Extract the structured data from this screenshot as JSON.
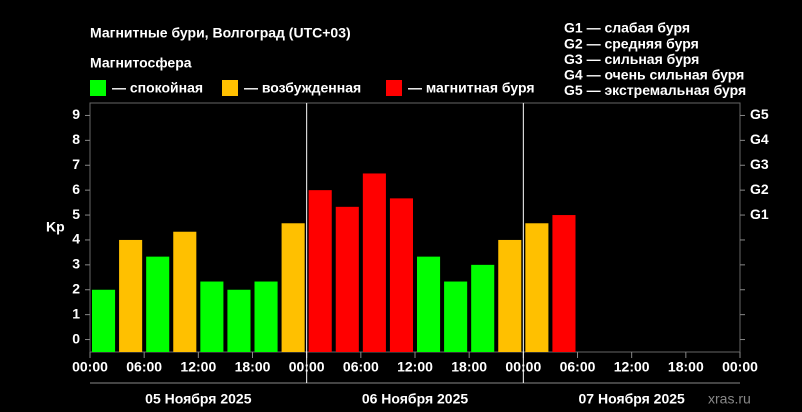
{
  "chart_data": {
    "type": "bar",
    "title": "Магнитные бури, Волгоград (UTC+03)",
    "legend_title": "Магнитосфера",
    "legend": [
      {
        "label": "— спокойная",
        "color": "#00ff00"
      },
      {
        "label": "— возбужденная",
        "color": "#ffc000"
      },
      {
        "label": "— магнитная буря",
        "color": "#ff0000"
      }
    ],
    "storm_levels": [
      "G1 — слабая буря",
      "G2 — средняя буря",
      "G3 — сильная буря",
      "G4 — очень сильная буря",
      "G5 — экстремальная буря"
    ],
    "ylabel": "Kp",
    "x": [
      0,
      3,
      6,
      9,
      12,
      15,
      18,
      21,
      24,
      27,
      30,
      33,
      36,
      39,
      42,
      45,
      48,
      51
    ],
    "values": [
      2,
      4,
      3.33,
      4.33,
      2.33,
      2,
      2.33,
      4.67,
      6,
      5.33,
      6.67,
      5.67,
      3.33,
      2.33,
      3,
      4,
      4.67,
      5
    ],
    "bar_colors": [
      "#00ff00",
      "#ffc000",
      "#00ff00",
      "#ffc000",
      "#00ff00",
      "#00ff00",
      "#00ff00",
      "#ffc000",
      "#ff0000",
      "#ff0000",
      "#ff0000",
      "#ff0000",
      "#00ff00",
      "#00ff00",
      "#00ff00",
      "#ffc000",
      "#ffc000",
      "#ff0000"
    ],
    "bar_width": 3,
    "xlim": [
      0,
      72
    ],
    "xticks": [
      {
        "value": 0,
        "label": "00:00"
      },
      {
        "value": 6,
        "label": "06:00"
      },
      {
        "value": 12,
        "label": "12:00"
      },
      {
        "value": 18,
        "label": "18:00"
      },
      {
        "value": 24,
        "label": "00:00"
      },
      {
        "value": 30,
        "label": "06:00"
      },
      {
        "value": 36,
        "label": "12:00"
      },
      {
        "value": 42,
        "label": "18:00"
      },
      {
        "value": 48,
        "label": "00:00"
      },
      {
        "value": 54,
        "label": "06:00"
      },
      {
        "value": 60,
        "label": "12:00"
      },
      {
        "value": 66,
        "label": "18:00"
      },
      {
        "value": 72,
        "label": "00:00"
      }
    ],
    "day_separators": [
      24,
      48
    ],
    "days": [
      "05 Ноября 2025",
      "06 Ноября 2025",
      "07 Ноября 2025"
    ],
    "ylim": [
      -0.5,
      9.5
    ],
    "yticks": [
      0,
      1,
      2,
      3,
      4,
      5,
      6,
      7,
      8,
      9
    ],
    "y2ticks": [
      {
        "value": 5,
        "label": "G1"
      },
      {
        "value": 6,
        "label": "G2"
      },
      {
        "value": 7,
        "label": "G3"
      },
      {
        "value": 8,
        "label": "G4"
      },
      {
        "value": 9,
        "label": "G5"
      }
    ],
    "watermark": "xras.ru"
  }
}
